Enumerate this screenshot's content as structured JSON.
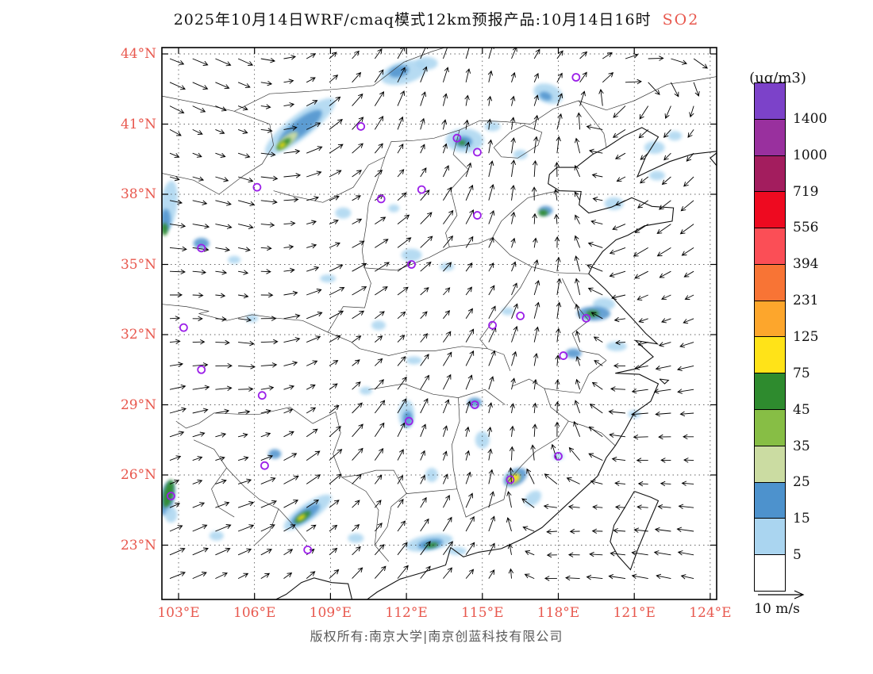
{
  "title": {
    "main": "2025年10月14日WRF/cmaq模式12km预报产品:10月14日16时",
    "pollutant": "SO2"
  },
  "footer": {
    "copyright": "版权所有:南京大学|南京创蓝科技有限公司"
  },
  "legend": {
    "units": "(ug/m3)",
    "labels": [
      "1400",
      "1000",
      "719",
      "556",
      "394",
      "231",
      "125",
      "75",
      "45",
      "35",
      "25",
      "15",
      "5"
    ],
    "colors_top_to_bottom": [
      "#7C42C9",
      "#99309E",
      "#A31D5E",
      "#EE0A20",
      "#FB4E56",
      "#F87435",
      "#FDA62C",
      "#FFE318",
      "#2E8B2E",
      "#87BE45",
      "#CBDCA2",
      "#4D92CD",
      "#AAD5F0",
      "#FFFFFF"
    ]
  },
  "wind_reference": {
    "label": "10 m/s"
  },
  "colors": {
    "axis_labels": "#E8584E",
    "pollutant": "#E8584E",
    "city_marker": "#9B1FE8",
    "wind_arrows": "#000000",
    "gridline": "#333333"
  },
  "chart_data": {
    "type": "heatmap",
    "title": "2025年10月14日WRF/cmaq模式12km预报产品:10月14日16时 SO2",
    "pollutant": "SO2",
    "units": "ug/m3",
    "legend_position": "right",
    "grid": "dotted",
    "lon_suffix": "°E",
    "lat_suffix": "°N",
    "lon_ticks": [
      103,
      106,
      109,
      112,
      115,
      118,
      121,
      124
    ],
    "lat_ticks": [
      23,
      26,
      29,
      32,
      35,
      38,
      41,
      44
    ],
    "lon_range": [
      102.3,
      124.3
    ],
    "lat_range": [
      20.7,
      44.3
    ],
    "colorbar_levels": [
      5,
      15,
      25,
      35,
      45,
      75,
      125,
      231,
      394,
      556,
      719,
      1000,
      1400
    ],
    "wind_reference_speed": "10 m/s",
    "wind_direction_grid_deg": [
      [
        20,
        25,
        -40,
        -60,
        -75,
        -50,
        -15,
        40
      ],
      [
        30,
        20,
        -35,
        -70,
        -85,
        -75,
        140,
        120
      ],
      [
        10,
        15,
        -20,
        -40,
        -70,
        -100,
        145,
        140
      ],
      [
        0,
        10,
        -25,
        -35,
        -55,
        -80,
        155,
        150
      ],
      [
        -10,
        5,
        -30,
        -50,
        -65,
        -85,
        170,
        165
      ],
      [
        -20,
        -15,
        -40,
        -65,
        -80,
        -90,
        178,
        182
      ],
      [
        -25,
        -20,
        -35,
        -55,
        -65,
        175,
        185,
        188
      ],
      [
        -20,
        -30,
        -45,
        -50,
        -45,
        182,
        192,
        195
      ]
    ],
    "hotspot_fields": [
      "lon",
      "lat",
      "rx_px",
      "ry_px",
      "rotation_deg",
      "level_ug_m3"
    ],
    "hotspots": [
      [
        107.8,
        40.9,
        55,
        15,
        -38,
        5
      ],
      [
        107.8,
        40.85,
        34,
        10,
        -38,
        15
      ],
      [
        107.3,
        40.3,
        16,
        6,
        -38,
        25
      ],
      [
        107.15,
        40.15,
        11,
        4,
        -38,
        45
      ],
      [
        107.1,
        40.1,
        5,
        2.5,
        -38,
        75
      ],
      [
        111.9,
        43.2,
        30,
        14,
        -15,
        5
      ],
      [
        111.7,
        43.25,
        13,
        7,
        -15,
        15
      ],
      [
        112.8,
        43.6,
        14,
        8,
        0,
        5
      ],
      [
        114.3,
        40.3,
        24,
        15,
        0,
        5
      ],
      [
        114.25,
        40.25,
        11,
        7,
        0,
        15
      ],
      [
        114.2,
        40.2,
        5,
        3,
        0,
        45
      ],
      [
        115.4,
        40.9,
        10,
        6,
        0,
        5
      ],
      [
        116.5,
        39.7,
        9,
        6,
        0,
        5
      ],
      [
        117.6,
        42.3,
        19,
        12,
        20,
        5
      ],
      [
        117.5,
        42.2,
        8,
        5,
        20,
        15
      ],
      [
        121.8,
        40.0,
        13,
        8,
        0,
        5
      ],
      [
        122.6,
        40.5,
        9,
        6,
        0,
        5
      ],
      [
        121.9,
        38.8,
        10,
        6,
        0,
        5
      ],
      [
        120.2,
        37.6,
        12,
        8,
        0,
        5
      ],
      [
        102.6,
        37.5,
        11,
        32,
        8,
        5
      ],
      [
        102.5,
        36.9,
        6,
        14,
        0,
        15
      ],
      [
        102.45,
        36.5,
        4,
        8,
        0,
        45
      ],
      [
        103.9,
        35.9,
        10,
        7,
        0,
        15
      ],
      [
        105.2,
        35.2,
        8,
        5,
        0,
        5
      ],
      [
        109.5,
        37.2,
        10,
        7,
        0,
        5
      ],
      [
        111.5,
        37.4,
        7,
        5,
        0,
        5
      ],
      [
        112.2,
        35.4,
        13,
        8,
        0,
        5
      ],
      [
        113.6,
        34.9,
        9,
        5,
        0,
        5
      ],
      [
        108.9,
        34.4,
        10,
        5,
        0,
        5
      ],
      [
        117.5,
        37.3,
        9,
        6,
        0,
        15
      ],
      [
        117.4,
        37.2,
        6,
        4,
        0,
        45
      ],
      [
        119.8,
        33.3,
        14,
        8,
        0,
        5
      ],
      [
        119.4,
        32.9,
        21,
        9,
        0,
        15
      ],
      [
        119.35,
        32.9,
        8,
        4,
        0,
        45
      ],
      [
        118.6,
        31.2,
        10,
        6,
        0,
        15
      ],
      [
        120.3,
        31.5,
        13,
        6,
        0,
        5
      ],
      [
        116.0,
        33.0,
        8,
        5,
        0,
        5
      ],
      [
        105.9,
        32.7,
        8,
        5,
        0,
        5
      ],
      [
        110.9,
        32.4,
        9,
        6,
        0,
        5
      ],
      [
        112.3,
        30.9,
        10,
        5,
        0,
        5
      ],
      [
        110.4,
        29.6,
        8,
        5,
        0,
        5
      ],
      [
        112.0,
        28.6,
        10,
        18,
        0,
        5
      ],
      [
        112.05,
        28.4,
        6,
        10,
        0,
        15
      ],
      [
        114.7,
        29.1,
        9,
        6,
        0,
        15
      ],
      [
        115.0,
        27.5,
        9,
        11,
        0,
        5
      ],
      [
        113.0,
        26.0,
        8,
        9,
        0,
        5
      ],
      [
        106.8,
        26.9,
        8,
        6,
        0,
        15
      ],
      [
        116.3,
        25.9,
        16,
        10,
        -30,
        15
      ],
      [
        116.25,
        25.85,
        8,
        5,
        -30,
        75
      ],
      [
        117.0,
        25.0,
        12,
        8,
        -40,
        5
      ],
      [
        118.0,
        26.8,
        7,
        5,
        0,
        5
      ],
      [
        121.0,
        28.6,
        8,
        5,
        0,
        5
      ],
      [
        108.1,
        24.4,
        36,
        11,
        -35,
        5
      ],
      [
        108.0,
        24.3,
        22,
        7,
        -35,
        15
      ],
      [
        107.9,
        24.2,
        12,
        4,
        -35,
        45
      ],
      [
        107.85,
        24.18,
        6,
        2.5,
        -35,
        75
      ],
      [
        112.9,
        23.1,
        30,
        10,
        -10,
        5
      ],
      [
        112.95,
        23.05,
        16,
        6,
        -10,
        15
      ],
      [
        113.0,
        23.0,
        8,
        3,
        -10,
        45
      ],
      [
        102.55,
        25.0,
        9,
        22,
        12,
        15
      ],
      [
        102.6,
        25.2,
        6,
        18,
        12,
        45
      ],
      [
        102.7,
        24.3,
        8,
        10,
        0,
        5
      ],
      [
        104.5,
        23.4,
        9,
        6,
        0,
        5
      ],
      [
        110.0,
        23.3,
        10,
        6,
        0,
        5
      ],
      [
        114.0,
        22.75,
        12,
        5,
        0,
        5
      ]
    ],
    "city_marker_fields": [
      "lon",
      "lat"
    ],
    "city_markers": [
      [
        118.7,
        43.0
      ],
      [
        110.2,
        40.9
      ],
      [
        114.0,
        40.4
      ],
      [
        114.8,
        39.8
      ],
      [
        106.1,
        38.3
      ],
      [
        112.6,
        38.2
      ],
      [
        111.0,
        37.8
      ],
      [
        114.8,
        37.1
      ],
      [
        103.9,
        35.7
      ],
      [
        112.2,
        35.0
      ],
      [
        116.5,
        32.8
      ],
      [
        115.4,
        32.4
      ],
      [
        119.1,
        32.7
      ],
      [
        103.2,
        32.3
      ],
      [
        118.2,
        31.1
      ],
      [
        103.9,
        30.5
      ],
      [
        106.3,
        29.4
      ],
      [
        114.7,
        29.0
      ],
      [
        112.1,
        28.3
      ],
      [
        118.0,
        26.8
      ],
      [
        106.4,
        26.4
      ],
      [
        116.1,
        25.8
      ],
      [
        102.7,
        25.1
      ],
      [
        108.1,
        22.8
      ]
    ]
  }
}
